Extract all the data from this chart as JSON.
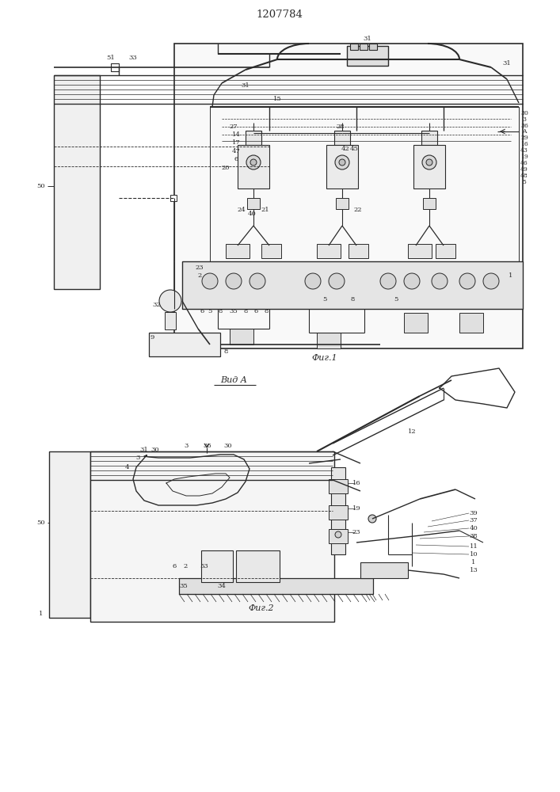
{
  "title": "1207784",
  "fig1_caption": "Фиг.1",
  "fig2_caption": "Фиг.2",
  "fig2_title": "Вид A",
  "bg_color": "#ffffff",
  "line_color": "#2a2a2a",
  "label_fontsize": 6.0
}
